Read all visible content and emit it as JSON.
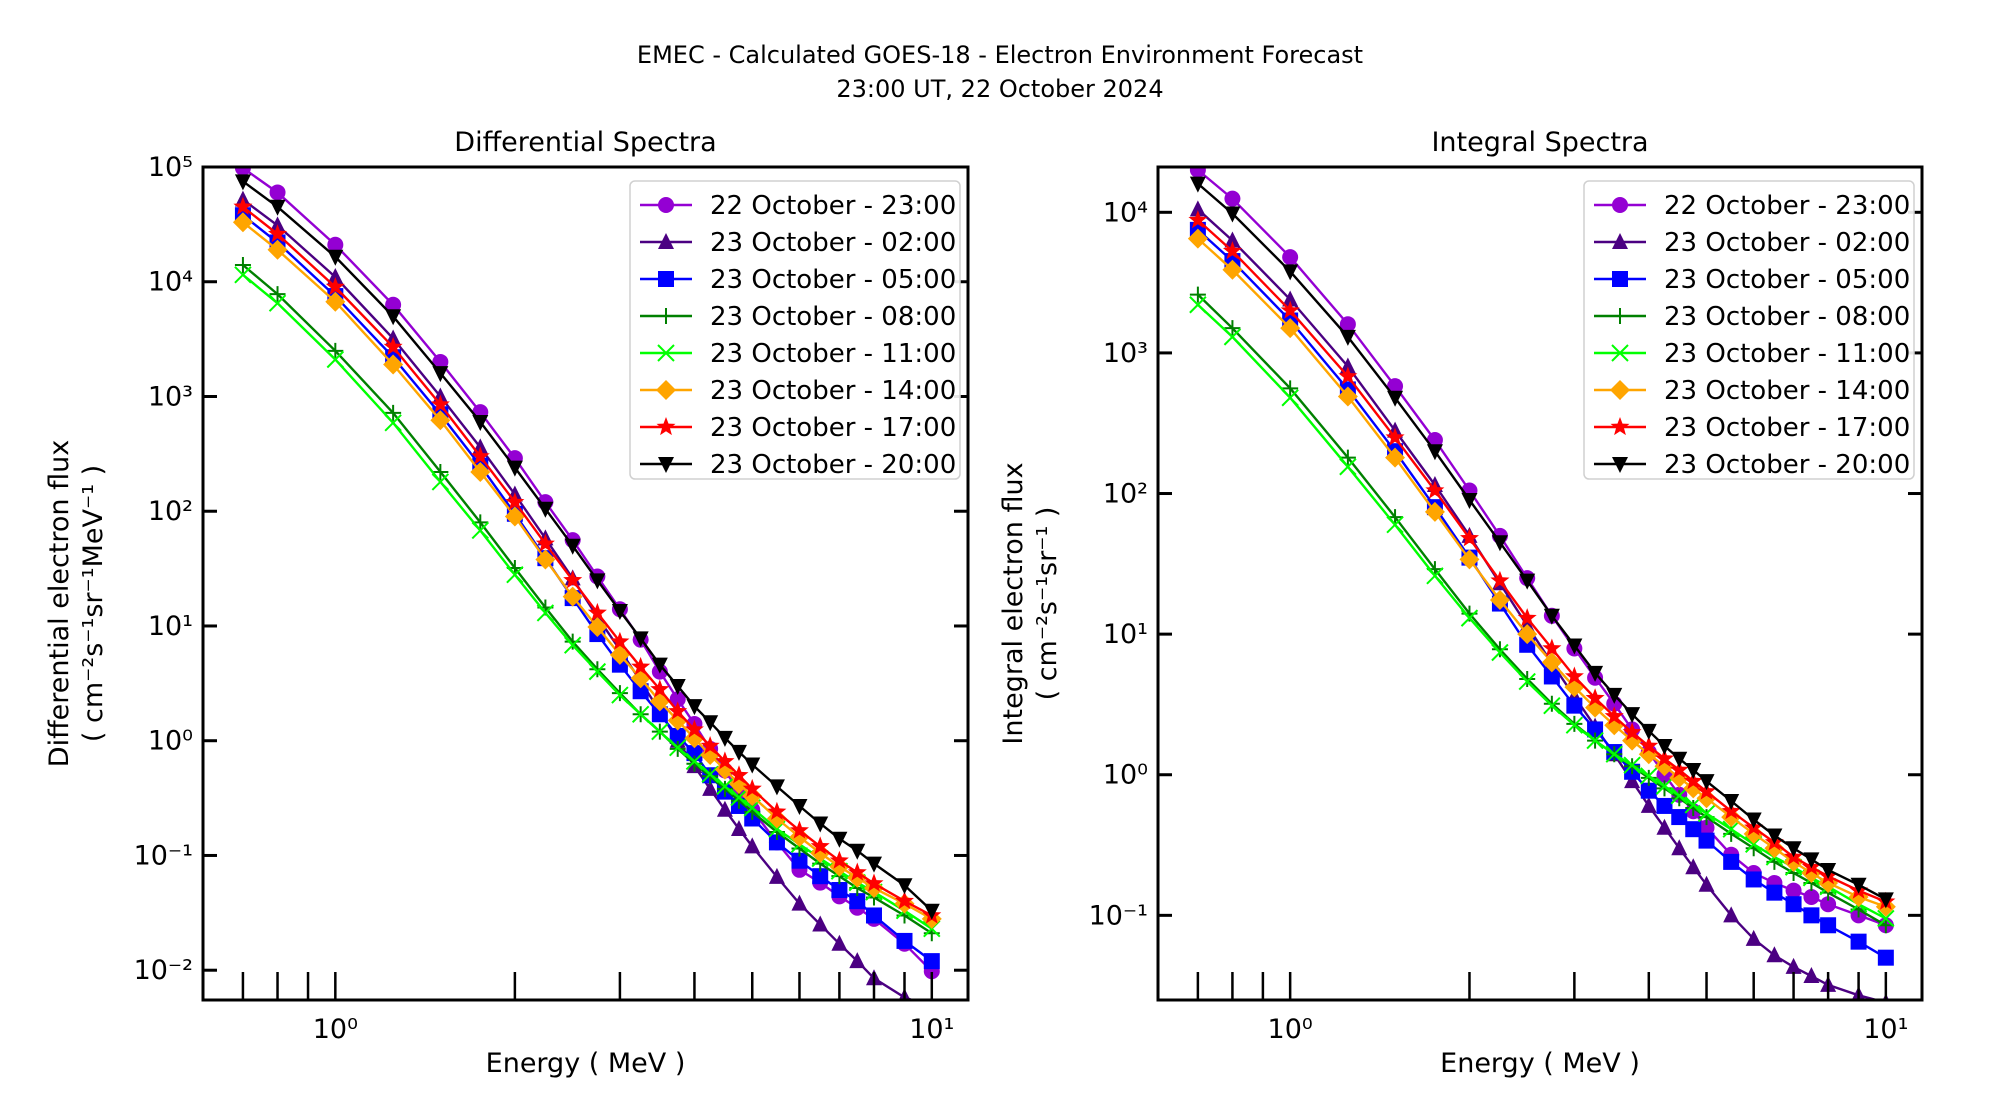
{
  "figure": {
    "title_line1": "EMEC - Calculated GOES-18 - Electron Environment Forecast",
    "title_line2": "23:00 UT, 22 October 2024"
  },
  "chart_data": [
    {
      "type": "line",
      "title": "Differential Spectra",
      "xlabel": "Energy ( MeV )",
      "ylabel_line1": "Differential electron flux",
      "ylabel_line2": "( cm⁻²s⁻¹sr⁻¹MeV⁻¹ )",
      "xscale": "log",
      "yscale": "log",
      "xlim": [
        0.6,
        11.5
      ],
      "ylim": [
        0.0055,
        100000
      ],
      "xticks": [
        {
          "value": 1,
          "label": "10⁰"
        },
        {
          "value": 10,
          "label": "10¹"
        }
      ],
      "yticks": [
        {
          "value": 100000,
          "label": "10⁵"
        },
        {
          "value": 10000,
          "label": "10⁴"
        },
        {
          "value": 1000,
          "label": "10³"
        },
        {
          "value": 100,
          "label": "10²"
        },
        {
          "value": 10,
          "label": "10¹"
        },
        {
          "value": 1,
          "label": "10⁰"
        },
        {
          "value": 0.1,
          "label": "10⁻¹"
        },
        {
          "value": 0.01,
          "label": "10⁻²"
        }
      ],
      "legend_position": "top-right",
      "grid": false,
      "x": [
        0.7,
        0.8,
        1.0,
        1.25,
        1.5,
        1.75,
        2.0,
        2.25,
        2.5,
        2.75,
        3.0,
        3.25,
        3.5,
        3.75,
        4.0,
        4.25,
        4.5,
        4.75,
        5.0,
        5.5,
        6.0,
        6.5,
        7.0,
        7.5,
        8.0,
        9.0,
        10.0
      ],
      "series": [
        {
          "name": "22 October - 23:00",
          "color": "#9400d3",
          "marker": "circle",
          "values": [
            98000,
            60000,
            21000,
            6300,
            2000,
            730,
            290,
            120,
            56,
            27,
            14,
            7.6,
            4.0,
            2.3,
            1.4,
            0.85,
            0.55,
            0.36,
            0.25,
            0.13,
            0.075,
            0.058,
            0.044,
            0.035,
            0.028,
            0.017,
            0.0098
          ]
        },
        {
          "name": "23 October - 02:00",
          "color": "#4b0082",
          "marker": "triangle-up",
          "values": [
            52000,
            31000,
            11000,
            3200,
            1000,
            360,
            140,
            58,
            26,
            12,
            6.2,
            3.3,
            1.8,
            1.0,
            0.6,
            0.38,
            0.25,
            0.17,
            0.12,
            0.065,
            0.038,
            0.025,
            0.017,
            0.012,
            0.0085,
            0.0058,
            0.0048
          ]
        },
        {
          "name": "23 October - 05:00",
          "color": "#0000ff",
          "marker": "square",
          "values": [
            38000,
            22000,
            7500,
            2200,
            700,
            250,
            95,
            39,
            17.5,
            8.5,
            4.6,
            2.7,
            1.7,
            1.1,
            0.78,
            0.5,
            0.36,
            0.27,
            0.21,
            0.13,
            0.09,
            0.066,
            0.05,
            0.04,
            0.03,
            0.018,
            0.012
          ]
        },
        {
          "name": "23 October - 08:00",
          "color": "#008000",
          "marker": "plus",
          "values": [
            14000,
            7800,
            2500,
            720,
            220,
            80,
            32,
            14.5,
            7.3,
            4.2,
            2.6,
            1.7,
            1.2,
            0.85,
            0.63,
            0.49,
            0.38,
            0.3,
            0.24,
            0.16,
            0.115,
            0.085,
            0.066,
            0.052,
            0.043,
            0.03,
            0.021
          ]
        },
        {
          "name": "23 October - 11:00",
          "color": "#00ff00",
          "marker": "x",
          "values": [
            11500,
            6500,
            2100,
            590,
            180,
            68,
            28,
            13,
            6.8,
            4.0,
            2.5,
            1.7,
            1.2,
            0.87,
            0.66,
            0.51,
            0.4,
            0.32,
            0.26,
            0.17,
            0.125,
            0.094,
            0.073,
            0.058,
            0.048,
            0.033,
            0.023
          ]
        },
        {
          "name": "23 October - 14:00",
          "color": "#ffa500",
          "marker": "diamond",
          "values": [
            33000,
            19000,
            6700,
            1900,
            620,
            220,
            90,
            38,
            18,
            9.8,
            5.6,
            3.5,
            2.2,
            1.5,
            1.05,
            0.75,
            0.56,
            0.42,
            0.33,
            0.21,
            0.145,
            0.105,
            0.08,
            0.064,
            0.052,
            0.038,
            0.028
          ]
        },
        {
          "name": "23 October - 17:00",
          "color": "#ff0000",
          "marker": "star",
          "values": [
            45000,
            26000,
            9000,
            2700,
            850,
            300,
            120,
            52,
            25,
            13,
            7.3,
            4.4,
            2.8,
            1.8,
            1.25,
            0.9,
            0.66,
            0.5,
            0.38,
            0.24,
            0.165,
            0.12,
            0.09,
            0.071,
            0.057,
            0.04,
            0.03
          ]
        },
        {
          "name": "23 October - 20:00",
          "color": "#000000",
          "marker": "triangle-down",
          "values": [
            75000,
            45000,
            16500,
            5000,
            1600,
            600,
            240,
            105,
            50,
            25,
            13.5,
            7.8,
            4.6,
            3.0,
            2.0,
            1.45,
            1.06,
            0.8,
            0.62,
            0.4,
            0.27,
            0.19,
            0.14,
            0.11,
            0.085,
            0.055,
            0.033
          ]
        }
      ]
    },
    {
      "type": "line",
      "title": "Integral Spectra",
      "xlabel": "Energy ( MeV )",
      "ylabel_line1": "Integral electron flux",
      "ylabel_line2": "( cm⁻²s⁻¹sr⁻¹ )",
      "xscale": "log",
      "yscale": "log",
      "xlim": [
        0.6,
        11.5
      ],
      "ylim": [
        0.025,
        21000
      ],
      "xticks": [
        {
          "value": 1,
          "label": "10⁰"
        },
        {
          "value": 10,
          "label": "10¹"
        }
      ],
      "yticks": [
        {
          "value": 10000,
          "label": "10⁴"
        },
        {
          "value": 1000,
          "label": "10³"
        },
        {
          "value": 100,
          "label": "10²"
        },
        {
          "value": 10,
          "label": "10¹"
        },
        {
          "value": 1,
          "label": "10⁰"
        },
        {
          "value": 0.1,
          "label": "10⁻¹"
        }
      ],
      "legend_position": "top-right",
      "grid": false,
      "x": [
        0.7,
        0.8,
        1.0,
        1.25,
        1.5,
        1.75,
        2.0,
        2.25,
        2.5,
        2.75,
        3.0,
        3.25,
        3.5,
        3.75,
        4.0,
        4.25,
        4.5,
        4.75,
        5.0,
        5.5,
        6.0,
        6.5,
        7.0,
        7.5,
        8.0,
        9.0,
        10.0
      ],
      "series": [
        {
          "name": "22 October - 23:00",
          "color": "#9400d3",
          "marker": "circle",
          "values": [
            20000,
            12500,
            4800,
            1600,
            580,
            240,
            105,
            50,
            25,
            13.5,
            7.9,
            4.9,
            3.2,
            2.1,
            1.45,
            1.0,
            0.72,
            0.55,
            0.42,
            0.27,
            0.2,
            0.17,
            0.15,
            0.135,
            0.12,
            0.1,
            0.085
          ]
        },
        {
          "name": "23 October - 02:00",
          "color": "#4b0082",
          "marker": "triangle-up",
          "values": [
            10500,
            6300,
            2400,
            800,
            280,
            115,
            50,
            23,
            11.5,
            6.2,
            3.6,
            2.2,
            1.4,
            0.9,
            0.6,
            0.42,
            0.3,
            0.22,
            0.165,
            0.1,
            0.068,
            0.052,
            0.043,
            0.037,
            0.032,
            0.027,
            0.024
          ]
        },
        {
          "name": "23 October - 05:00",
          "color": "#0000ff",
          "marker": "square",
          "values": [
            7500,
            4500,
            1700,
            550,
            200,
            80,
            35,
            16.5,
            8.4,
            5.0,
            3.1,
            2.1,
            1.45,
            1.05,
            0.77,
            0.6,
            0.5,
            0.41,
            0.34,
            0.24,
            0.18,
            0.145,
            0.12,
            0.1,
            0.085,
            0.065,
            0.05
          ]
        },
        {
          "name": "23 October - 08:00",
          "color": "#008000",
          "marker": "plus",
          "values": [
            2600,
            1500,
            560,
            180,
            68,
            29,
            14,
            7.8,
            4.8,
            3.2,
            2.3,
            1.75,
            1.4,
            1.15,
            0.95,
            0.8,
            0.68,
            0.58,
            0.5,
            0.38,
            0.3,
            0.24,
            0.2,
            0.17,
            0.145,
            0.11,
            0.085
          ]
        },
        {
          "name": "23 October - 11:00",
          "color": "#00ff00",
          "marker": "x",
          "values": [
            2200,
            1300,
            480,
            155,
            60,
            26,
            13,
            7.4,
            4.6,
            3.1,
            2.25,
            1.75,
            1.4,
            1.17,
            0.98,
            0.83,
            0.71,
            0.61,
            0.53,
            0.41,
            0.32,
            0.26,
            0.22,
            0.185,
            0.16,
            0.12,
            0.095
          ]
        },
        {
          "name": "23 October - 14:00",
          "color": "#ffa500",
          "marker": "diamond",
          "values": [
            6500,
            3900,
            1500,
            490,
            180,
            74,
            34,
            17.5,
            10,
            6.3,
            4.2,
            3.0,
            2.25,
            1.75,
            1.4,
            1.15,
            0.95,
            0.8,
            0.68,
            0.5,
            0.38,
            0.3,
            0.24,
            0.2,
            0.17,
            0.135,
            0.115
          ]
        },
        {
          "name": "23 October - 17:00",
          "color": "#ff0000",
          "marker": "star",
          "values": [
            8800,
            5300,
            2000,
            680,
            250,
            105,
            48,
            24,
            13,
            7.9,
            5.0,
            3.5,
            2.6,
            2.0,
            1.6,
            1.3,
            1.08,
            0.9,
            0.76,
            0.55,
            0.42,
            0.33,
            0.26,
            0.22,
            0.19,
            0.15,
            0.125
          ]
        },
        {
          "name": "23 October - 20:00",
          "color": "#000000",
          "marker": "triangle-down",
          "values": [
            16000,
            9800,
            3800,
            1300,
            480,
            200,
            90,
            45,
            24,
            13.5,
            8.3,
            5.3,
            3.7,
            2.7,
            2.05,
            1.6,
            1.3,
            1.08,
            0.9,
            0.65,
            0.48,
            0.37,
            0.3,
            0.25,
            0.21,
            0.165,
            0.13
          ]
        }
      ]
    }
  ]
}
